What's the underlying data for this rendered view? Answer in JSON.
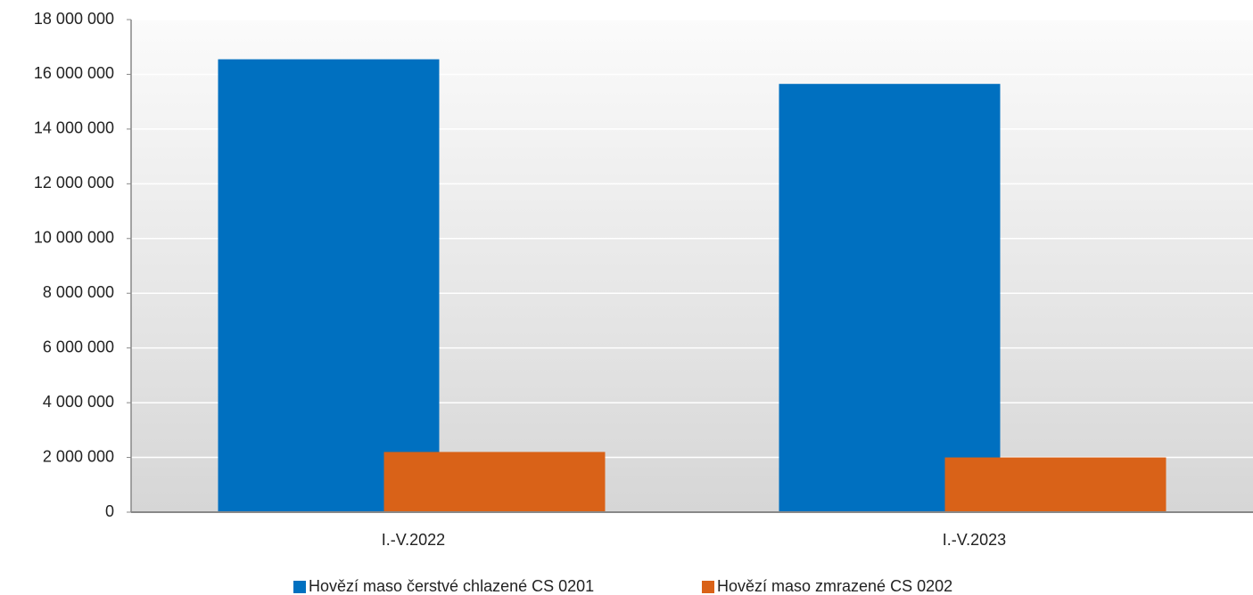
{
  "chart_data": {
    "type": "bar",
    "categories": [
      "I.-V.2022",
      "I.-V.2023"
    ],
    "series": [
      {
        "name": "Hovězí maso čerstvé chlazené CS 0201",
        "color": "#0070c0",
        "values": [
          16550000,
          15650000
        ]
      },
      {
        "name": "Hovězí maso zmrazené CS 0202",
        "color": "#d96218",
        "values": [
          2200000,
          2000000
        ]
      }
    ],
    "ylim": [
      0,
      18000000
    ],
    "yticks": [
      0,
      {
        "value": 2000000,
        "label": "2 000 000"
      },
      {
        "value": 4000000,
        "label": "4 000 000"
      },
      {
        "value": 6000000,
        "label": "6 000 000"
      },
      {
        "value": 8000000,
        "label": "8 000 000"
      },
      {
        "value": 10000000,
        "label": "10 000 000"
      },
      {
        "value": 12000000,
        "label": "12 000 000"
      },
      {
        "value": 14000000,
        "label": "14 000 000"
      },
      {
        "value": 16000000,
        "label": "16 000 000"
      },
      {
        "value": 18000000,
        "label": "18 000 000"
      }
    ],
    "grid": true,
    "legend": "bottom"
  }
}
